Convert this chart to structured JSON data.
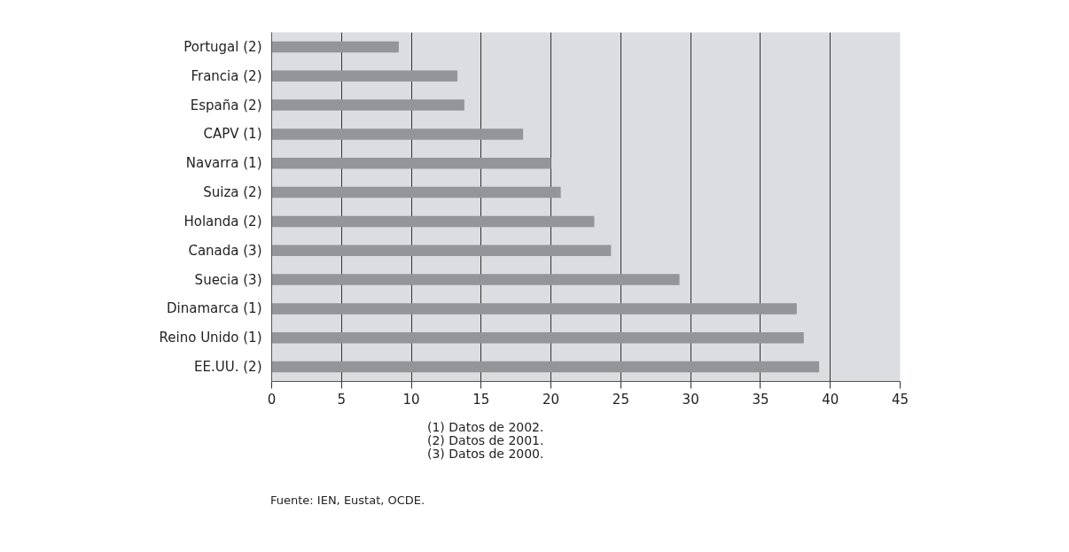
{
  "chart_data": {
    "type": "bar",
    "orientation": "horizontal",
    "categories": [
      "Portugal (2)",
      "Francia (2)",
      "España (2)",
      "CAPV (1)",
      "Navarra (1)",
      "Suiza (2)",
      "Holanda (2)",
      "Canada (3)",
      "Suecia (3)",
      "Dinamarca (1)",
      "Reino Unido (1)",
      "EE.UU. (2)"
    ],
    "values": [
      9.1,
      13.3,
      13.8,
      18.0,
      20.0,
      20.7,
      23.1,
      24.3,
      29.2,
      37.6,
      38.1,
      39.2
    ],
    "color": "#939598",
    "xlim": [
      0,
      45
    ],
    "xticks": [
      0,
      5,
      10,
      15,
      20,
      25,
      30,
      35,
      40,
      45
    ],
    "grid": "x",
    "annotations": [
      "(1) Datos de 2002.",
      "(2) Datos de 2001.",
      "(3) Datos de 2000.",
      "Fuente: IEN, Eustat, OCDE."
    ]
  }
}
